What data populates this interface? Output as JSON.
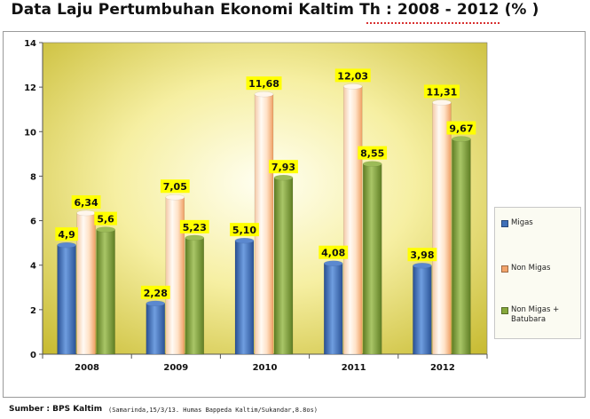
{
  "title": "Data Laju Pertumbuhan Ekonomi Kaltim Th : 2008 - 2012 (% )",
  "source": "Sumber : BPS Kaltim",
  "footnote": "(Samarinda,15/3/13. Humas Bappeda Kaltim/Sukandar,8.8os)",
  "colors": {
    "migas": "#3f6fb8",
    "non_migas": "#f2a36b",
    "non_migas_batubara": "#86a83c",
    "label_bg": "#ffff00",
    "plot_bg_center": "#fffde0",
    "plot_bg_edge": "#c9bd35"
  },
  "chart_data": {
    "type": "bar",
    "categories": [
      "2008",
      "2009",
      "2010",
      "2011",
      "2012"
    ],
    "series": [
      {
        "name": "Migas",
        "values": [
          4.9,
          2.28,
          5.1,
          4.08,
          3.98
        ],
        "labels": [
          "4,9",
          "2,28",
          "5,10",
          "4,08",
          "3,98"
        ]
      },
      {
        "name": "Non Migas",
        "values": [
          6.34,
          7.05,
          11.68,
          12.03,
          11.31
        ],
        "labels": [
          "6,34",
          "7,05",
          "11,68",
          "12,03",
          "11,31"
        ]
      },
      {
        "name": "Non Migas + Batubara",
        "values": [
          5.6,
          5.23,
          7.93,
          8.55,
          9.67
        ],
        "labels": [
          "5,6",
          "5,23",
          "7,93",
          "8,55",
          "9,67"
        ]
      }
    ],
    "yticks": [
      "0",
      "2",
      "4",
      "6",
      "8",
      "10",
      "12",
      "14"
    ],
    "ylim": [
      0,
      14
    ],
    "grid": false,
    "legend_position": "right"
  }
}
